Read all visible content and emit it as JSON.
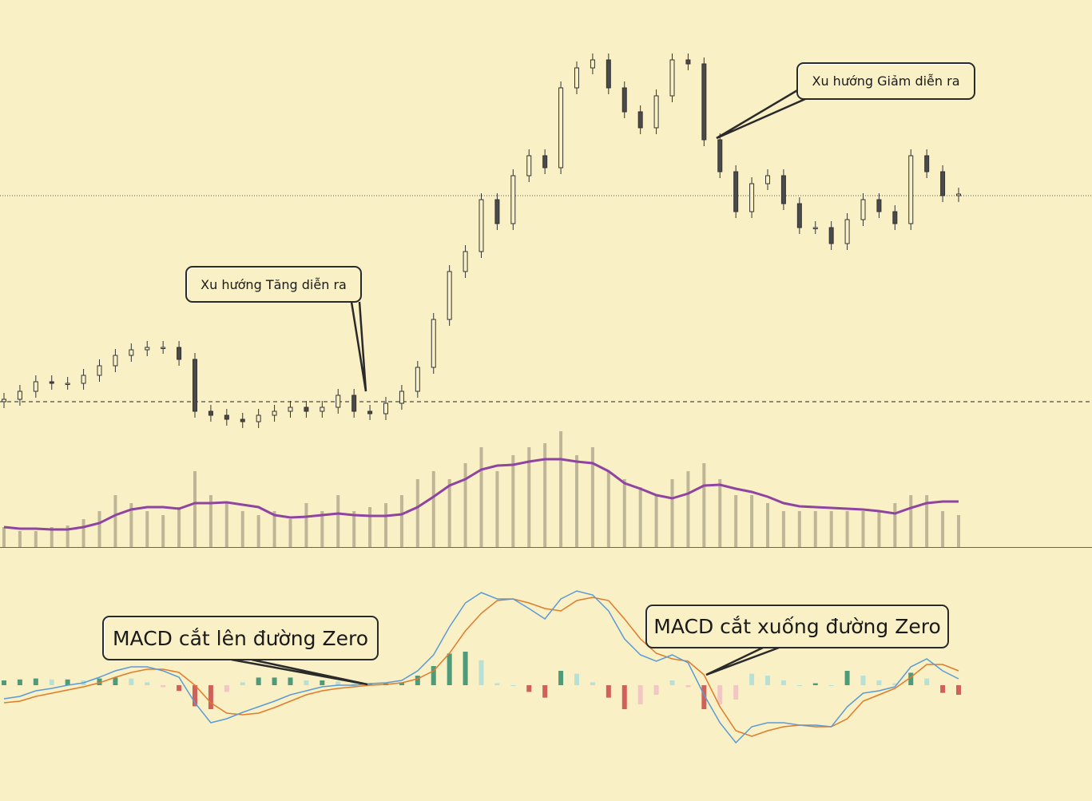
{
  "colors": {
    "background": "#faf0c6",
    "candle_up": "#faf0c6",
    "candle_down": "#4a4a4a",
    "candle_wick": "#333333",
    "volume": "#bfb597",
    "volume_ma": "#8e44a0",
    "macd": "#5b9bd5",
    "signal": "#e07b2a",
    "hist_pos_strong": "#4f9a78",
    "hist_pos_weak": "#b9e0d4",
    "hist_neg_strong": "#d0605a",
    "hist_neg_weak": "#f2c6c4",
    "separator": "#8e44a0"
  },
  "annotations": {
    "uptrend": "Xu hướng Tăng diễn ra",
    "downtrend": "Xu hướng Giảm diễn ra",
    "macd_cross_up": "MACD cắt lên đường Zero",
    "macd_cross_down": "MACD cắt xuống đường Zero"
  },
  "chart_data": [
    {
      "type": "candlestick",
      "note_levels": {
        "current_price_line": 35.5,
        "support_line": 9.7
      },
      "close": [
        10.0,
        11.0,
        12.2,
        12.0,
        12.0,
        13.0,
        14.2,
        15.5,
        16.2,
        16.5,
        16.5,
        15.0,
        8.5,
        8.0,
        7.5,
        7.2,
        8.0,
        8.5,
        9.0,
        8.5,
        9.0,
        10.5,
        8.5,
        8.2,
        9.5,
        11.0,
        14.0,
        20.0,
        26.0,
        28.5,
        35.0,
        32.0,
        38.0,
        40.5,
        39.0,
        49.0,
        51.5,
        52.5,
        49.0,
        46.0,
        44.0,
        48.0,
        52.5,
        52.0,
        42.5,
        38.5,
        33.5,
        37.0,
        38.0,
        34.5,
        31.5,
        31.5,
        29.5,
        32.5,
        35.0,
        33.5,
        32.0,
        40.5,
        38.5,
        35.5,
        35.7
      ],
      "volume": [
        2.5,
        2.0,
        2.0,
        2.5,
        2.7,
        3.5,
        4.5,
        6.5,
        5.5,
        4.5,
        4.0,
        5.0,
        9.5,
        6.5,
        5.5,
        4.5,
        4.0,
        4.5,
        3.5,
        5.5,
        4.5,
        6.5,
        4.5,
        5.0,
        5.5,
        6.5,
        8.5,
        9.5,
        8.5,
        10.5,
        12.5,
        9.5,
        11.5,
        12.5,
        13.0,
        14.5,
        11.5,
        12.5,
        9.5,
        8.5,
        7.5,
        6.5,
        8.5,
        9.5,
        10.5,
        8.5,
        6.5,
        6.5,
        5.5,
        4.5,
        4.5,
        4.5,
        4.5,
        4.5,
        4.5,
        4.5,
        5.5,
        6.5,
        6.5,
        4.5,
        4.0
      ],
      "volume_ma": [
        2.5,
        2.3,
        2.3,
        2.2,
        2.2,
        2.5,
        3.0,
        4.0,
        4.7,
        5.0,
        5.0,
        4.8,
        5.5,
        5.5,
        5.6,
        5.3,
        5.0,
        4.0,
        3.7,
        3.8,
        4.0,
        4.2,
        4.0,
        3.9,
        3.9,
        4.1,
        5.0,
        6.3,
        7.7,
        8.5,
        9.7,
        10.2,
        10.3,
        10.7,
        11.0,
        11.0,
        10.7,
        10.5,
        9.5,
        8.0,
        7.3,
        6.5,
        6.1,
        6.7,
        7.7,
        7.8,
        7.3,
        6.9,
        6.3,
        5.5,
        5.1,
        5.0,
        4.9,
        4.8,
        4.7,
        4.5,
        4.2,
        4.9,
        5.5,
        5.7,
        5.7
      ]
    },
    {
      "type": "line",
      "series": [
        {
          "key": "macd",
          "values": [
            -1.7,
            -1.4,
            -0.7,
            -0.4,
            0,
            0.3,
            1.0,
            1.8,
            2.3,
            2.3,
            1.8,
            1.0,
            -2.2,
            -4.7,
            -4.2,
            -3.4,
            -2.7,
            -2.0,
            -1.2,
            -0.7,
            -0.2,
            0,
            0,
            0.2,
            0.3,
            0.6,
            1.8,
            3.8,
            7.3,
            10.3,
            11.6,
            10.8,
            10.8,
            9.6,
            8.3,
            10.8,
            11.8,
            11.3,
            9.3,
            5.8,
            3.8,
            3.0,
            3.8,
            2.8,
            -1.2,
            -4.7,
            -7.2,
            -5.2,
            -4.7,
            -4.7,
            -5.0,
            -5.0,
            -5.2,
            -2.7,
            -1.0,
            -0.7,
            -0.2,
            2.3,
            3.3,
            1.8,
            0.8
          ]
        },
        {
          "key": "signal",
          "values": [
            -2.2,
            -2.0,
            -1.4,
            -1.0,
            -0.6,
            -0.2,
            0.3,
            1.0,
            1.6,
            2.0,
            2.0,
            1.6,
            0,
            -2.2,
            -3.5,
            -3.7,
            -3.5,
            -2.8,
            -2.0,
            -1.2,
            -0.7,
            -0.4,
            -0.2,
            0,
            0.1,
            0.3,
            0.8,
            1.8,
            4.0,
            6.8,
            9.0,
            10.6,
            10.8,
            10.3,
            9.6,
            9.3,
            10.6,
            11.0,
            10.6,
            8.3,
            5.8,
            4.0,
            3.3,
            3.0,
            1.3,
            -2.7,
            -5.7,
            -6.4,
            -5.7,
            -5.2,
            -5.0,
            -5.2,
            -5.2,
            -4.2,
            -2.0,
            -1.2,
            -0.4,
            1.0,
            2.6,
            2.6,
            1.8
          ]
        }
      ],
      "histogram": [
        0.5,
        0.6,
        0.7,
        0.6,
        0.6,
        0.5,
        0.7,
        0.8,
        0.7,
        0.3,
        -0.2,
        -0.6,
        -2.2,
        -2.5,
        -0.7,
        0.3,
        0.8,
        0.8,
        0.8,
        0.5,
        0.5,
        0.4,
        0.2,
        0.2,
        0.2,
        0.3,
        1.0,
        2.0,
        3.3,
        3.5,
        2.6,
        0.2,
        0,
        -0.7,
        -1.3,
        1.5,
        1.2,
        0.3,
        -1.3,
        -2.5,
        -2.0,
        -1.0,
        0.5,
        -0.2,
        -2.5,
        -2.0,
        -1.5,
        1.2,
        1.0,
        0.5,
        0,
        0.2,
        0,
        1.5,
        1.0,
        0.5,
        0.2,
        1.3,
        0.7,
        -0.8,
        -1.0
      ],
      "zero_line": 0
    }
  ]
}
